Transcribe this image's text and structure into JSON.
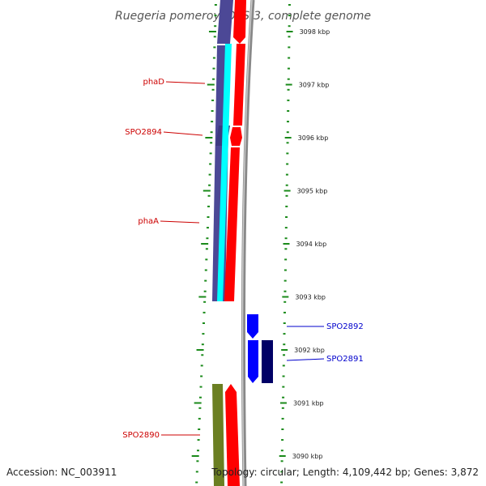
{
  "title": "Ruegeria pomeroyi DSS-3, complete genome",
  "footer": {
    "accession": "Accession: NC_003911",
    "topology": "Topology: circular; Length: 4,109,442 bp; Genes: 3,872"
  },
  "scale": {
    "unit": "kbp",
    "ticks": [
      {
        "value": 3098,
        "label": "3098 kbp"
      },
      {
        "value": 3097,
        "label": "3097 kbp"
      },
      {
        "value": 3096,
        "label": "3096 kbp"
      },
      {
        "value": 3095,
        "label": "3095 kbp"
      },
      {
        "value": 3094,
        "label": "3094 kbp"
      },
      {
        "value": 3093,
        "label": "3093 kbp"
      },
      {
        "value": 3092,
        "label": "3092 kbp"
      },
      {
        "value": 3091,
        "label": "3091 kbp"
      },
      {
        "value": 3090,
        "label": "3090 kbp"
      }
    ]
  },
  "colors": {
    "forward_gene": "#ff0000",
    "reverse_gene": "#0000ff",
    "dark_navy": "#000066",
    "slate_blue": "#4c4896",
    "cyan": "#00ffff",
    "olive": "#6b7f22",
    "tick_green": "#1a8a1a",
    "label_red": "#cc0000",
    "label_blue": "#0000cc",
    "backbone_gray": "#888888"
  },
  "gene_labels": [
    {
      "name": "phaD",
      "kind": "red"
    },
    {
      "name": "SPO2894",
      "kind": "red"
    },
    {
      "name": "phaA",
      "kind": "red"
    },
    {
      "name": "SPO2892",
      "kind": "blue"
    },
    {
      "name": "SPO2891",
      "kind": "blue"
    },
    {
      "name": "SPO2890",
      "kind": "red"
    }
  ]
}
